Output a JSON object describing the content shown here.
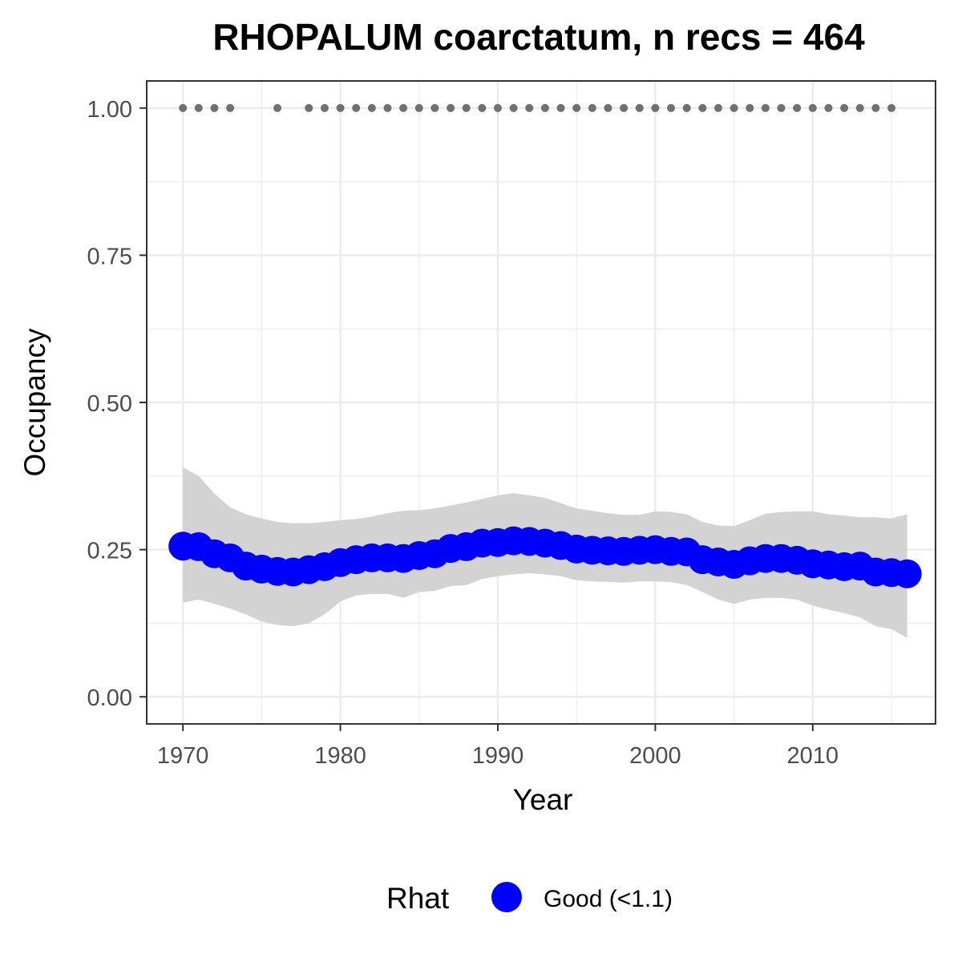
{
  "chart_data": {
    "type": "line",
    "title": "RHOPALUM coarctatum, n recs = 464",
    "xlabel": "Year",
    "ylabel": "Occupancy",
    "xlim": [
      1967.7,
      2017.8
    ],
    "ylim": [
      -0.046,
      1.046
    ],
    "x_ticks": [
      1970,
      1980,
      1990,
      2000,
      2010
    ],
    "x_tick_labels": [
      "1970",
      "1980",
      "1990",
      "2000",
      "2010"
    ],
    "y_ticks": [
      0,
      0.25,
      0.5,
      0.75,
      1
    ],
    "y_tick_labels": [
      "0.00",
      "0.25",
      "0.50",
      "0.75",
      "1.00"
    ],
    "grid": true,
    "legend": {
      "title": "Rhat",
      "position": "bottom",
      "entries": [
        {
          "label": "Good (<1.1)",
          "color": "#0000ff"
        }
      ]
    },
    "colors": {
      "series": "#0000ff",
      "ribbon": "#d3d3d3",
      "records": "#707070",
      "grid": "#ebebeb",
      "border": "#333333"
    },
    "x": [
      1970,
      1971,
      1972,
      1973,
      1974,
      1975,
      1976,
      1977,
      1978,
      1979,
      1980,
      1981,
      1982,
      1983,
      1984,
      1985,
      1986,
      1987,
      1988,
      1989,
      1990,
      1991,
      1992,
      1993,
      1994,
      1995,
      1996,
      1997,
      1998,
      1999,
      2000,
      2001,
      2002,
      2003,
      2004,
      2005,
      2006,
      2007,
      2008,
      2009,
      2010,
      2011,
      2012,
      2013,
      2014,
      2015,
      2016
    ],
    "series": [
      {
        "name": "Good (<1.1)",
        "values": [
          0.256,
          0.255,
          0.243,
          0.236,
          0.222,
          0.217,
          0.213,
          0.212,
          0.216,
          0.221,
          0.228,
          0.233,
          0.236,
          0.236,
          0.235,
          0.24,
          0.243,
          0.252,
          0.255,
          0.261,
          0.262,
          0.265,
          0.264,
          0.261,
          0.257,
          0.251,
          0.249,
          0.248,
          0.247,
          0.249,
          0.25,
          0.247,
          0.246,
          0.233,
          0.229,
          0.225,
          0.231,
          0.235,
          0.235,
          0.232,
          0.226,
          0.224,
          0.221,
          0.222,
          0.212,
          0.211,
          0.209
        ],
        "lower": [
          0.16,
          0.165,
          0.158,
          0.15,
          0.14,
          0.128,
          0.122,
          0.12,
          0.125,
          0.14,
          0.162,
          0.172,
          0.175,
          0.175,
          0.168,
          0.178,
          0.18,
          0.188,
          0.19,
          0.2,
          0.205,
          0.208,
          0.21,
          0.208,
          0.205,
          0.198,
          0.196,
          0.195,
          0.194,
          0.196,
          0.196,
          0.195,
          0.19,
          0.178,
          0.165,
          0.158,
          0.165,
          0.168,
          0.168,
          0.165,
          0.155,
          0.148,
          0.142,
          0.135,
          0.12,
          0.115,
          0.1
        ],
        "upper": [
          0.39,
          0.375,
          0.345,
          0.322,
          0.31,
          0.303,
          0.297,
          0.295,
          0.295,
          0.297,
          0.3,
          0.302,
          0.306,
          0.312,
          0.316,
          0.317,
          0.32,
          0.325,
          0.33,
          0.336,
          0.342,
          0.346,
          0.342,
          0.338,
          0.329,
          0.32,
          0.316,
          0.312,
          0.309,
          0.309,
          0.315,
          0.314,
          0.31,
          0.297,
          0.291,
          0.29,
          0.3,
          0.311,
          0.314,
          0.315,
          0.315,
          0.31,
          0.308,
          0.305,
          0.305,
          0.303,
          0.31
        ]
      }
    ],
    "record_years": [
      1970,
      1971,
      1972,
      1973,
      1976,
      1978,
      1979,
      1980,
      1981,
      1982,
      1983,
      1984,
      1985,
      1986,
      1987,
      1988,
      1989,
      1990,
      1991,
      1992,
      1993,
      1994,
      1995,
      1996,
      1997,
      1998,
      1999,
      2000,
      2001,
      2002,
      2003,
      2004,
      2005,
      2006,
      2007,
      2008,
      2009,
      2010,
      2011,
      2012,
      2013,
      2014,
      2015
    ],
    "record_value": 1
  }
}
